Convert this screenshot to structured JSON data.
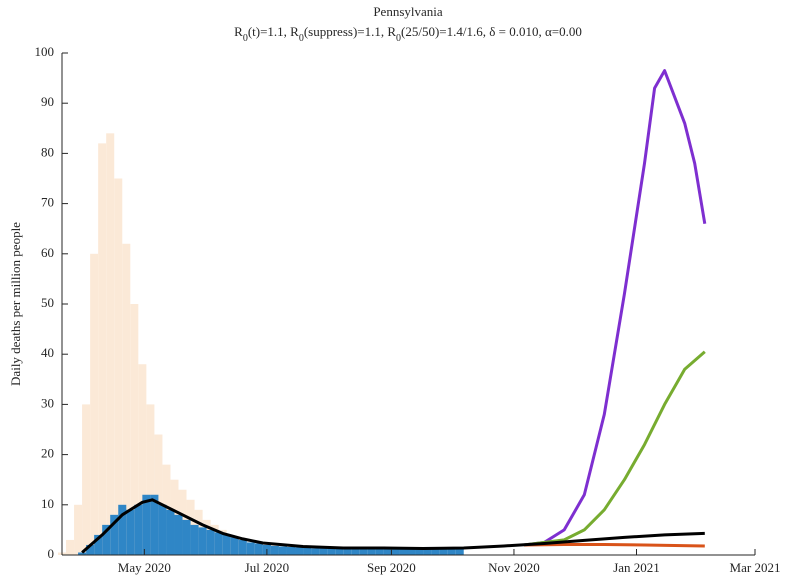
{
  "chart_data": {
    "type": "combo",
    "title": "Pennsylvania",
    "subtitle_parts": [
      "R",
      "0",
      "(t)=1.1,  R",
      "0",
      "(suppress)=1.1,  R",
      "0",
      "(25/50)=1.4/1.6, δ = 0.010, α=0.00"
    ],
    "ylabel": "Daily deaths per million people",
    "xlim": [
      20,
      365
    ],
    "xticks": [
      {
        "value": 61,
        "label": "May 2020"
      },
      {
        "value": 122,
        "label": "Jul 2020"
      },
      {
        "value": 184,
        "label": "Sep 2020"
      },
      {
        "value": 245,
        "label": "Nov 2020"
      },
      {
        "value": 306,
        "label": "Jan 2021"
      },
      {
        "value": 365,
        "label": "Mar 2021"
      }
    ],
    "ylim": [
      0,
      100
    ],
    "yticks": [
      0,
      10,
      20,
      30,
      40,
      50,
      60,
      70,
      80,
      90,
      100
    ],
    "series": [
      {
        "kind": "bar",
        "color": "#fbe9d7",
        "x": [
          20,
          24,
          28,
          32,
          36,
          40,
          44,
          48,
          52,
          56,
          60,
          64,
          68,
          72,
          76,
          80,
          84,
          88,
          92,
          96,
          100,
          104,
          108,
          112,
          116,
          120,
          124,
          128
        ],
        "values": [
          0.5,
          3,
          10,
          30,
          60,
          82,
          84,
          75,
          62,
          50,
          38,
          30,
          24,
          18,
          15,
          13,
          11,
          9,
          7,
          6,
          5,
          4,
          3,
          2.5,
          2,
          1.5,
          1,
          0.8
        ]
      },
      {
        "kind": "bar",
        "color": "#2f86c6",
        "x": [
          30,
          34,
          38,
          42,
          46,
          50,
          54,
          58,
          62,
          66,
          70,
          74,
          78,
          82,
          86,
          90,
          94,
          98,
          102,
          106,
          110,
          114,
          118,
          122,
          126,
          130,
          134,
          138,
          142,
          146,
          150,
          154,
          158,
          162,
          166,
          170,
          174,
          178,
          182,
          186,
          190,
          194,
          198,
          202,
          206,
          210,
          214,
          218
        ],
        "values": [
          0.5,
          2,
          4,
          6,
          8,
          10,
          9,
          10,
          12,
          12,
          10,
          9,
          8,
          7,
          6,
          5.5,
          5,
          4.5,
          4,
          3.5,
          3,
          2.5,
          2.3,
          2,
          1.8,
          1.7,
          1.6,
          1.5,
          1.4,
          1.3,
          1.3,
          1.3,
          1.4,
          1.5,
          1.5,
          1.4,
          1.4,
          1.3,
          1.3,
          1.3,
          1.3,
          1.4,
          1.5,
          1.6,
          1.6,
          1.5,
          1.5,
          1.5
        ]
      },
      {
        "kind": "line",
        "color": "#7e2fd0",
        "x": [
          250,
          260,
          270,
          280,
          290,
          300,
          310,
          315,
          320,
          330,
          335,
          340
        ],
        "values": [
          2,
          2.5,
          5,
          12,
          28,
          52,
          78,
          93,
          96.5,
          86,
          78,
          66
        ]
      },
      {
        "kind": "line",
        "color": "#77ac30",
        "x": [
          250,
          270,
          280,
          290,
          300,
          310,
          320,
          330,
          340
        ],
        "values": [
          2,
          3,
          5,
          9,
          15,
          22,
          30,
          37,
          40.5
        ]
      },
      {
        "kind": "line",
        "color": "#d95319",
        "x": [
          250,
          270,
          290,
          310,
          340
        ],
        "values": [
          2,
          2.1,
          2.1,
          2,
          1.8
        ]
      },
      {
        "kind": "line",
        "color": "#000000",
        "x": [
          30,
          40,
          50,
          60,
          65,
          70,
          80,
          90,
          100,
          110,
          120,
          140,
          160,
          180,
          200,
          220,
          240,
          260,
          280,
          300,
          320,
          340
        ],
        "values": [
          0.5,
          4,
          8,
          10.5,
          11,
          10,
          8,
          6,
          4.3,
          3.2,
          2.4,
          1.7,
          1.4,
          1.4,
          1.3,
          1.4,
          1.8,
          2.3,
          2.9,
          3.5,
          4,
          4.3
        ]
      }
    ]
  }
}
